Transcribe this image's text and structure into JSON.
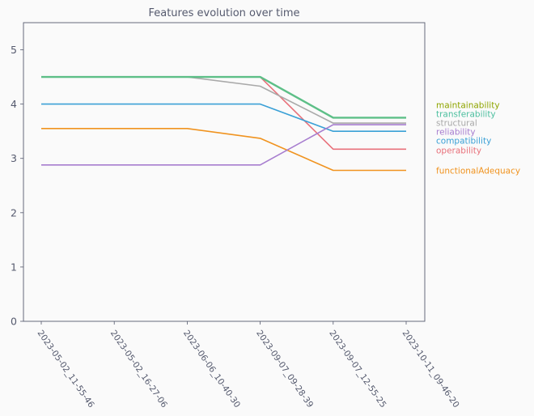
{
  "chart_data": {
    "type": "line",
    "title": "Features evolution over time",
    "xlabel": "",
    "ylabel": "",
    "ylim": [
      0,
      5.5
    ],
    "yticks": [
      0,
      1,
      2,
      3,
      4,
      5
    ],
    "grid": false,
    "legend": "right",
    "x": [
      "2023-05-02_11-55-46",
      "2023-05-02_16-27-06",
      "2023-06-06_10-40-30",
      "2023-09-07_09-28-39",
      "2023-09-07_12-55-25",
      "2023-10-11_09-46-20"
    ],
    "series": [
      {
        "name": "maintainability",
        "color": "#8fa500",
        "line_color": "#5dbf87",
        "values": [
          4.5,
          4.5,
          4.5,
          4.5,
          3.75,
          3.75
        ]
      },
      {
        "name": "transferability",
        "color": "#4cbf9f",
        "values": [
          4.5,
          4.5,
          4.5,
          4.5,
          3.75,
          3.75
        ]
      },
      {
        "name": "structural",
        "color": "#a9a9a9",
        "values": [
          4.5,
          4.5,
          4.5,
          4.33,
          3.65,
          3.65
        ]
      },
      {
        "name": "reliability",
        "color": "#a77dcf",
        "values": [
          2.88,
          2.88,
          2.88,
          2.88,
          3.62,
          3.62
        ]
      },
      {
        "name": "compatibility",
        "color": "#3aa0d6",
        "values": [
          4.0,
          4.0,
          4.0,
          4.0,
          3.5,
          3.5
        ]
      },
      {
        "name": "operability",
        "color": "#e8717b",
        "values": [
          4.5,
          4.5,
          4.5,
          4.5,
          3.17,
          3.17
        ]
      },
      {
        "name": "functionalAdequacy",
        "color": "#f0931f",
        "values": [
          3.55,
          3.55,
          3.55,
          3.37,
          2.78,
          2.78
        ]
      }
    ]
  }
}
